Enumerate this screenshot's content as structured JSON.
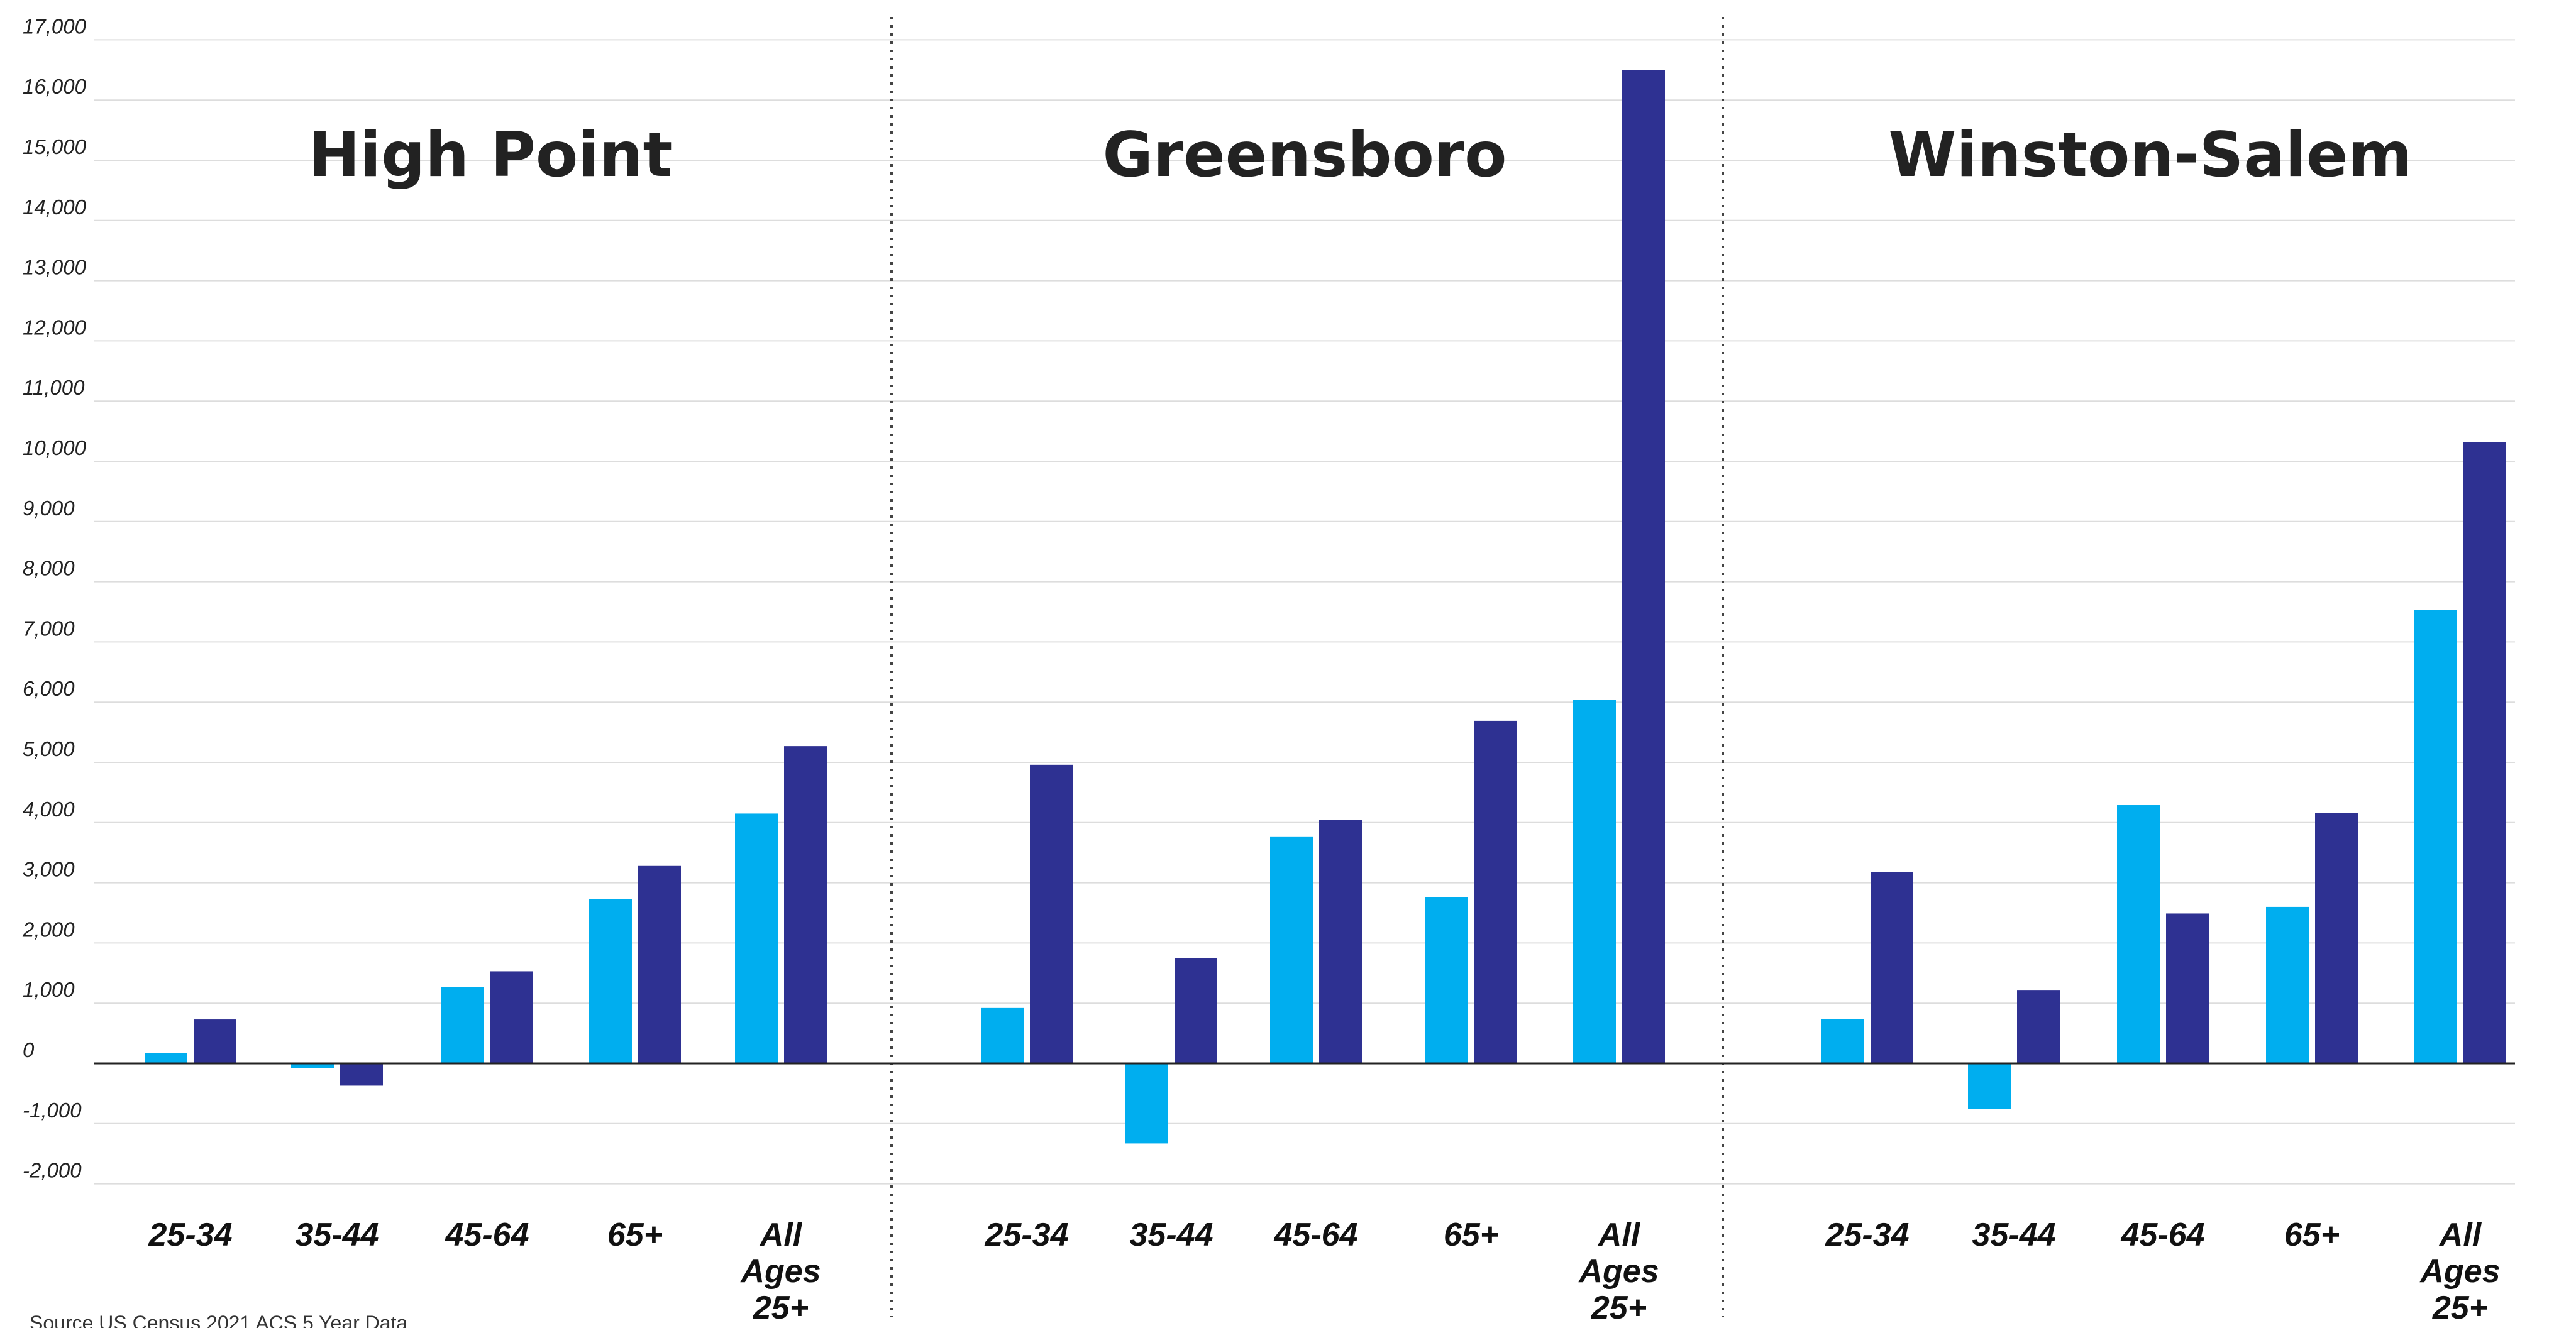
{
  "colors": {
    "series_1": "#00aeef",
    "series_2": "#2e3192",
    "grid": "#dddddd",
    "zero_line": "#222222",
    "divider": "#444444"
  },
  "source_text": "Source US Census 2021 ACS 5 Year Data",
  "chart_data": [
    {
      "type": "bar",
      "title": "High Point",
      "categories": [
        "25-34",
        "35-44",
        "45-64",
        "65+",
        "All Ages 25+"
      ],
      "series": [
        {
          "values": [
            170,
            -80,
            1270,
            2730,
            4150
          ]
        },
        {
          "values": [
            730,
            -370,
            1530,
            3280,
            5270
          ]
        }
      ],
      "ylim": [
        -2000,
        17000
      ],
      "yticks": [
        "17,000",
        "16,000",
        "15,000",
        "14,000",
        "13,000",
        "12,000",
        "11,000",
        "10,000",
        "9,000",
        "8,000",
        "7,000",
        "6,000",
        "5,000",
        "4,000",
        "3,000",
        "2,000",
        "1,000",
        "0",
        "-1,000",
        "-2,000"
      ],
      "grid": true
    },
    {
      "type": "bar",
      "title": "Greensboro",
      "categories": [
        "25-34",
        "35-44",
        "45-64",
        "65+",
        "All Ages 25+"
      ],
      "series": [
        {
          "values": [
            920,
            -1330,
            3770,
            2760,
            6040
          ]
        },
        {
          "values": [
            4960,
            1750,
            4040,
            5690,
            16500
          ]
        }
      ],
      "ylim": [
        -2000,
        17000
      ],
      "grid": true
    },
    {
      "type": "bar",
      "title": "Winston-Salem",
      "categories": [
        "25-34",
        "35-44",
        "45-64",
        "65+",
        "All Ages 25+"
      ],
      "series": [
        {
          "values": [
            740,
            -760,
            4290,
            2600,
            7530
          ]
        },
        {
          "values": [
            3180,
            1220,
            2490,
            4160,
            10320
          ]
        }
      ],
      "ylim": [
        -2000,
        17000
      ],
      "grid": true
    }
  ]
}
